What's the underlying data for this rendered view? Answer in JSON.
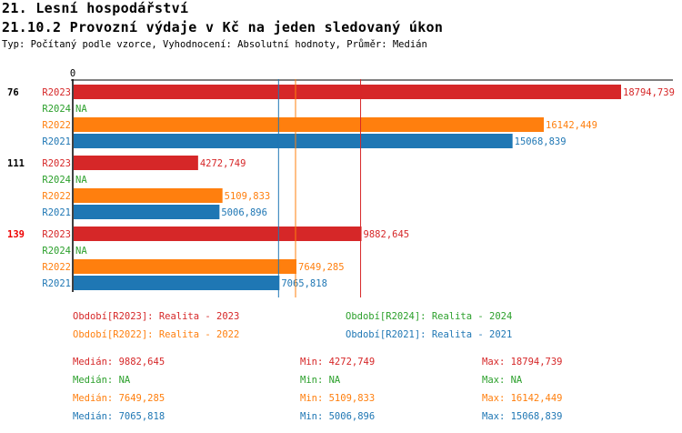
{
  "header": {
    "title": "21. Lesní hospodářství",
    "subtitle": "21.10.2 Provozní výdaje v Kč na jeden sledovaný úkon",
    "info": "Typ: Počítaný podle vzorce, Vyhodnocení: Absolutní hodnoty, Průměr: Medián"
  },
  "chart_data": {
    "type": "bar",
    "orientation": "horizontal",
    "xlim": [
      0,
      18794.739
    ],
    "x_tick_labels": [
      "0"
    ],
    "colors": {
      "R2023": "#d62728",
      "R2024": "#2ca02c",
      "R2022": "#ff7f0e",
      "R2021": "#1f77b4"
    },
    "periods": [
      "R2023",
      "R2024",
      "R2022",
      "R2021"
    ],
    "groups": [
      {
        "label": "76",
        "highlight": false,
        "values": [
          18794.739,
          null,
          16142.449,
          15068.839
        ],
        "labels": [
          "18794,739",
          "NA",
          "16142,449",
          "15068,839"
        ]
      },
      {
        "label": "111",
        "highlight": false,
        "values": [
          4272.749,
          null,
          5109.833,
          5006.896
        ],
        "labels": [
          "4272,749",
          "NA",
          "5109,833",
          "5006,896"
        ]
      },
      {
        "label": "139",
        "highlight": true,
        "values": [
          9882.645,
          null,
          7649.285,
          7065.818
        ],
        "labels": [
          "9882,645",
          "NA",
          "7649,285",
          "7065,818"
        ]
      }
    ],
    "median_lines": [
      {
        "period": "R2023",
        "value": 9882.645
      },
      {
        "period": "R2022",
        "value": 7649.285
      },
      {
        "period": "R2021",
        "value": 7065.818
      }
    ]
  },
  "legend": [
    {
      "text": "Období[R2023]: Realita - 2023",
      "color": "#d62728"
    },
    {
      "text": "Období[R2024]: Realita - 2024",
      "color": "#2ca02c"
    },
    {
      "text": "Období[R2022]: Realita - 2022",
      "color": "#ff7f0e"
    },
    {
      "text": "Období[R2021]: Realita - 2021",
      "color": "#1f77b4"
    }
  ],
  "stats": [
    {
      "median": "Medián: 9882,645",
      "min": "Min: 4272,749",
      "max": "Max: 18794,739",
      "color": "#d62728"
    },
    {
      "median": "Medián: NA",
      "min": "Min: NA",
      "max": "Max: NA",
      "color": "#2ca02c"
    },
    {
      "median": "Medián: 7649,285",
      "min": "Min: 5109,833",
      "max": "Max: 16142,449",
      "color": "#ff7f0e"
    },
    {
      "median": "Medián: 7065,818",
      "min": "Min: 5006,896",
      "max": "Max: 15068,839",
      "color": "#1f77b4"
    }
  ]
}
